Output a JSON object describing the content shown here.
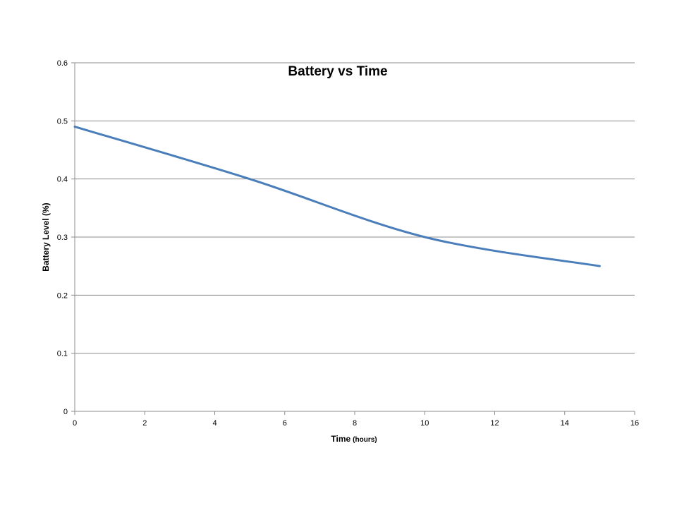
{
  "chart_data": {
    "type": "line",
    "title": "Battery vs Time",
    "xlabel": "Time",
    "xlabel_unit": "(hours)",
    "ylabel": "Battery Level (%)",
    "xlim": [
      0,
      16
    ],
    "ylim": [
      0,
      0.6
    ],
    "x_ticks": [
      "0",
      "2",
      "4",
      "6",
      "8",
      "10",
      "12",
      "14",
      "16"
    ],
    "y_ticks": [
      "0",
      "0.1",
      "0.2",
      "0.3",
      "0.4",
      "0.5",
      "0.6"
    ],
    "grid": "horizontal",
    "legend": "none",
    "series": [
      {
        "color": "#4a7ebb",
        "x": [
          0,
          5,
          10,
          15
        ],
        "y": [
          0.49,
          0.4,
          0.3,
          0.25
        ]
      }
    ]
  }
}
